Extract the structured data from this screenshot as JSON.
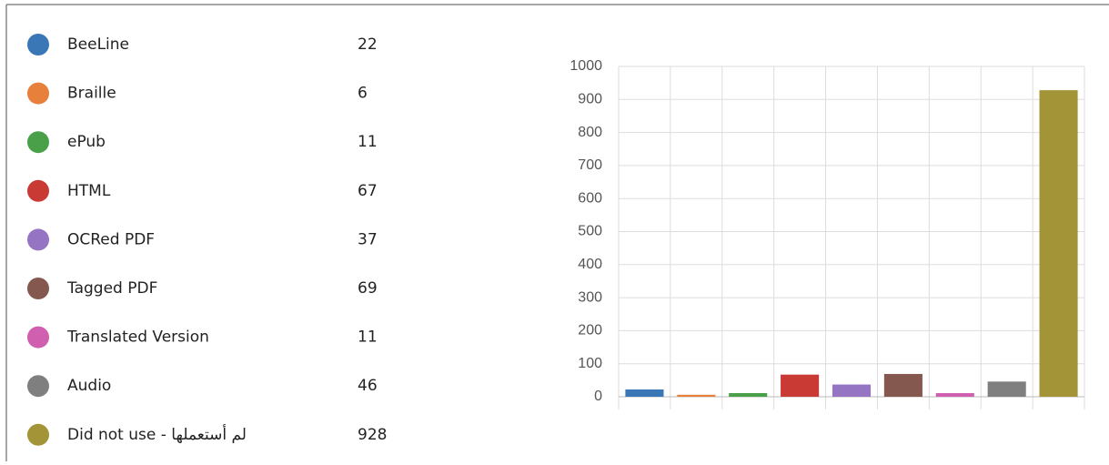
{
  "chart_data": {
    "type": "bar",
    "categories": [
      "BeeLine",
      "Braille",
      "ePub",
      "HTML",
      "OCRed PDF",
      "Tagged PDF",
      "Translated Version",
      "Audio",
      "Did not use - لم أستعملها"
    ],
    "values": [
      22,
      6,
      11,
      67,
      37,
      69,
      11,
      46,
      928
    ],
    "colors": [
      "#3a77b7",
      "#e7803a",
      "#49a048",
      "#c93a35",
      "#9474c3",
      "#84574f",
      "#d05fb0",
      "#7f7f7f",
      "#a29437"
    ],
    "ylim": [
      0,
      1000
    ],
    "yticks": [
      0,
      100,
      200,
      300,
      400,
      500,
      600,
      700,
      800,
      900,
      1000
    ],
    "grid": true
  }
}
